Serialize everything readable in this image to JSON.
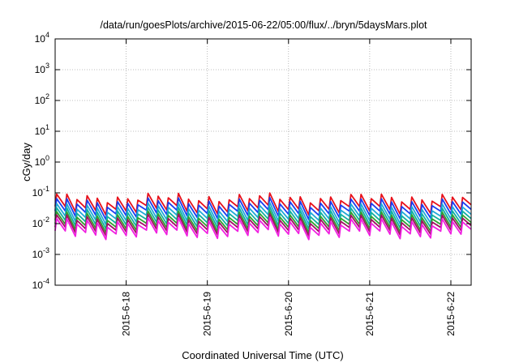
{
  "chart_data": {
    "type": "line",
    "title": "/data/run/goesPlots/archive/2015-06-22/05:00/flux/../bryn/5daysMars.plot",
    "xlabel": "Coordinated Universal Time (UTC)",
    "ylabel": "cGy/day",
    "yscale": "log",
    "ylim": [
      0.0001,
      10000
    ],
    "xlim": [
      "2015-06-17 03:00",
      "2015-06-22 06:00"
    ],
    "grid": true,
    "legend": "none",
    "y_ticks": [
      {
        "base": "10",
        "exp": "-4"
      },
      {
        "base": "10",
        "exp": "-3"
      },
      {
        "base": "10",
        "exp": "-2"
      },
      {
        "base": "10",
        "exp": "-1"
      },
      {
        "base": "10",
        "exp": "0"
      },
      {
        "base": "10",
        "exp": "1"
      },
      {
        "base": "10",
        "exp": "2"
      },
      {
        "base": "10",
        "exp": "3"
      },
      {
        "base": "10",
        "exp": "4"
      }
    ],
    "x_ticks": [
      {
        "label": "2015-6-18",
        "value": "2015-06-18 00:00"
      },
      {
        "label": "2015-6-19",
        "value": "2015-06-19 00:00"
      },
      {
        "label": "2015-6-20",
        "value": "2015-06-20 00:00"
      },
      {
        "label": "2015-6-21",
        "value": "2015-06-21 00:00"
      },
      {
        "label": "2015-6-22",
        "value": "2015-06-22 00:00"
      }
    ],
    "sample_period_hours": 3,
    "pattern_note": "sawtooth: quick rise at each sample then decay",
    "series": [
      {
        "color": "#e8101a",
        "level": 0.045
      },
      {
        "color": "#1a3cf0",
        "level": 0.032
      },
      {
        "color": "#20a8d8",
        "level": 0.022
      },
      {
        "color": "#10b0a0",
        "level": 0.016
      },
      {
        "color": "#30a030",
        "level": 0.012
      },
      {
        "color": "#a01060",
        "level": 0.0095
      },
      {
        "color": "#f020e0",
        "level": 0.0072
      }
    ]
  }
}
